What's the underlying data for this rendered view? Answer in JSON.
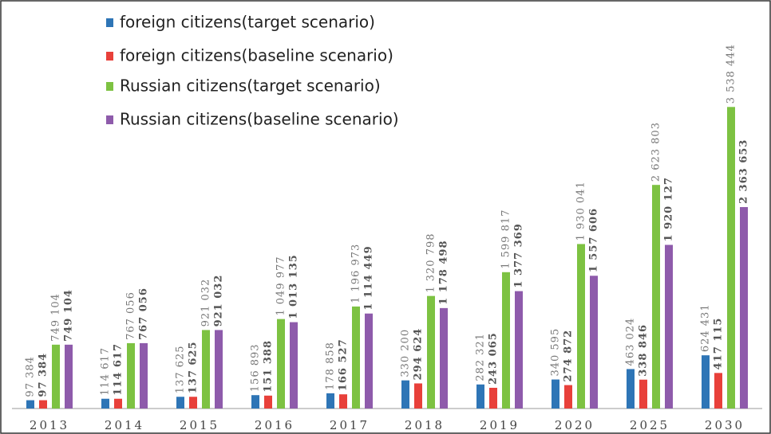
{
  "chart_data": {
    "type": "bar",
    "categories": [
      "2013",
      "2014",
      "2015",
      "2016",
      "2017",
      "2018",
      "2019",
      "2020",
      "2025",
      "2030"
    ],
    "ylim": [
      0,
      4700000
    ],
    "legend": "top-left",
    "series": [
      {
        "name": "foreign citizens(target scenario)",
        "color": "#2e75b6",
        "values": [
          97384,
          114617,
          137625,
          156893,
          178858,
          330200,
          282321,
          340595,
          463024,
          624431
        ],
        "value_labels": [
          "97 384",
          "114 617",
          "137 625",
          "156 893",
          "178 858",
          "330 200",
          "282 321",
          "340 595",
          "463 024",
          "624 431"
        ]
      },
      {
        "name": "foreign citizens(baseline scenario)",
        "color": "#e8403a",
        "values": [
          97384,
          114617,
          137625,
          151388,
          166527,
          294624,
          243065,
          274872,
          338846,
          417115
        ],
        "value_labels": [
          "97 384",
          "114 617",
          "137 625",
          "151 388",
          "166 527",
          "294 624",
          "243 065",
          "274 872",
          "338 846",
          "417 115"
        ]
      },
      {
        "name": "Russian citizens(target scenario)",
        "color": "#7dc242",
        "values": [
          749104,
          767056,
          921032,
          1049977,
          1196973,
          1320798,
          1599817,
          1930041,
          2623803,
          3538444
        ],
        "value_labels": [
          "749 104",
          "767 056",
          "921 032",
          "1 049 977",
          "1 196 973",
          "1 320 798",
          "1 599 817",
          "1 930 041",
          "2 623 803",
          "3 538 444"
        ]
      },
      {
        "name": "Russian citizens(baseline scenario)",
        "color": "#8e5bab",
        "values": [
          749104,
          767056,
          921032,
          1013135,
          1114449,
          1178498,
          1377369,
          1557606,
          1920127,
          2363653
        ],
        "value_labels": [
          "749 104",
          "767 056",
          "921 032",
          "1 013 135",
          "1 114 449",
          "1 178 498",
          "1 377 369",
          "1 557 606",
          "1 920 127",
          "2 363 653"
        ]
      }
    ]
  }
}
